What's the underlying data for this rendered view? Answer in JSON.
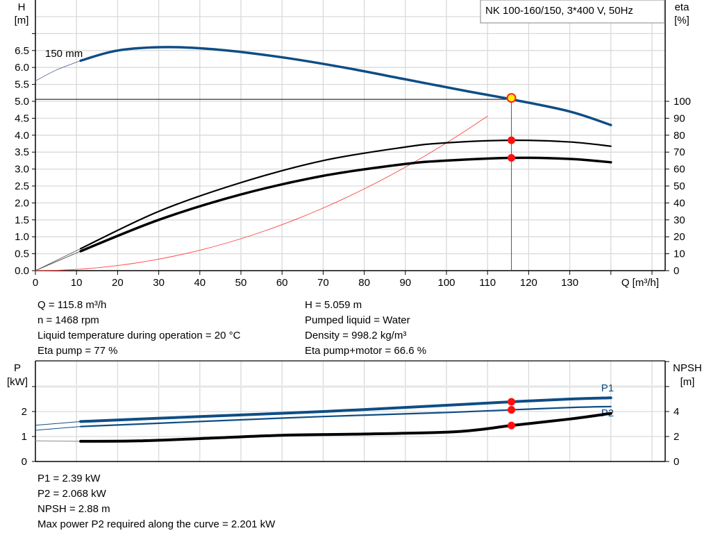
{
  "chart_data": [
    {
      "type": "line",
      "title": "NK 100-160/150, 3*400 V, 50Hz",
      "xlabel": "Q [m³/h]",
      "ylabel_left": [
        "H",
        "[m]"
      ],
      "ylabel_right": [
        "eta",
        "[%]"
      ],
      "xlim": [
        0,
        150
      ],
      "ylim_left": [
        0,
        7.5
      ],
      "ylim_right": [
        0,
        100
      ],
      "grid": true,
      "x_ticks": [
        "0",
        "10",
        "20",
        "30",
        "40",
        "50",
        "60",
        "70",
        "80",
        "90",
        "100",
        "110",
        "120",
        "130"
      ],
      "y_left_ticks": [
        "0.0",
        "0.5",
        "1.0",
        "1.5",
        "2.0",
        "2.5",
        "3.0",
        "3.5",
        "4.0",
        "4.5",
        "5.0",
        "5.5",
        "6.0",
        "6.5"
      ],
      "y_right_ticks": [
        "0",
        "10",
        "20",
        "30",
        "40",
        "50",
        "60",
        "70",
        "80",
        "90",
        "100"
      ],
      "impeller_label": "150 mm",
      "duty_point": {
        "Q": 115.8,
        "H": 5.059,
        "eta_pump": 77,
        "eta_total": 66.6
      },
      "series": [
        {
          "key": "H",
          "axis": "left",
          "color": "#0e4d85",
          "extension": [
            [
              0,
              5.6
            ],
            [
              5,
              5.92
            ],
            [
              11,
              6.2
            ]
          ],
          "points": [
            [
              11,
              6.2
            ],
            [
              20,
              6.5
            ],
            [
              32,
              6.6
            ],
            [
              45,
              6.52
            ],
            [
              60,
              6.3
            ],
            [
              75,
              6.0
            ],
            [
              90,
              5.65
            ],
            [
              105,
              5.3
            ],
            [
              115.8,
              5.059
            ],
            [
              130,
              4.7
            ],
            [
              140,
              4.3
            ]
          ]
        },
        {
          "key": "eta_pump",
          "axis": "right",
          "color": "#000000",
          "extension": [
            [
              0,
              0
            ],
            [
              11,
              13
            ]
          ],
          "points": [
            [
              11,
              13
            ],
            [
              30,
              35
            ],
            [
              50,
              52
            ],
            [
              70,
              65
            ],
            [
              90,
              73
            ],
            [
              100,
              75.5
            ],
            [
              115.8,
              77
            ],
            [
              130,
              76
            ],
            [
              140,
              73.5
            ]
          ]
        },
        {
          "key": "eta_total",
          "axis": "right",
          "color": "#000000",
          "extension": [
            [
              0,
              0
            ],
            [
              11,
              11.5
            ]
          ],
          "points": [
            [
              11,
              11.5
            ],
            [
              30,
              30
            ],
            [
              50,
              45
            ],
            [
              70,
              56
            ],
            [
              90,
              63
            ],
            [
              100,
              65
            ],
            [
              115.8,
              66.6
            ],
            [
              130,
              66
            ],
            [
              140,
              64
            ]
          ]
        },
        {
          "key": "system",
          "axis": "left",
          "color": "#ff0000",
          "note_formula": "quadratic through origin and duty point"
        }
      ]
    },
    {
      "type": "line",
      "xlim": [
        0,
        150
      ],
      "ylabel_left": [
        "P",
        "[kW]"
      ],
      "ylabel_right": [
        "NPSH",
        "[m]"
      ],
      "ylim_left": [
        0,
        4
      ],
      "ylim_right": [
        0,
        8
      ],
      "grid": true,
      "y_left_ticks": [
        "0",
        "1",
        "2"
      ],
      "y_right_ticks": [
        "0",
        "2",
        "4"
      ],
      "series": [
        {
          "name": "P1",
          "axis": "left",
          "color": "#0e4d85",
          "extension": [
            [
              0,
              1.45
            ],
            [
              11,
              1.6
            ]
          ],
          "points": [
            [
              11,
              1.6
            ],
            [
              40,
              1.8
            ],
            [
              70,
              2.0
            ],
            [
              100,
              2.25
            ],
            [
              115.8,
              2.39
            ],
            [
              130,
              2.5
            ],
            [
              140,
              2.55
            ]
          ]
        },
        {
          "name": "P2",
          "axis": "left",
          "color": "#0e4d85",
          "extension": [
            [
              0,
              1.25
            ],
            [
              11,
              1.4
            ]
          ],
          "points": [
            [
              11,
              1.4
            ],
            [
              40,
              1.6
            ],
            [
              70,
              1.8
            ],
            [
              100,
              1.96
            ],
            [
              115.8,
              2.068
            ],
            [
              130,
              2.16
            ],
            [
              140,
              2.2
            ]
          ]
        },
        {
          "key": "NPSH",
          "axis": "right",
          "color": "#000000",
          "extension": [
            [
              0,
              1.65
            ],
            [
              11,
              1.62
            ]
          ],
          "points": [
            [
              11,
              1.62
            ],
            [
              25,
              1.65
            ],
            [
              45,
              1.9
            ],
            [
              60,
              2.1
            ],
            [
              80,
              2.2
            ],
            [
              100,
              2.35
            ],
            [
              108,
              2.55
            ],
            [
              115.8,
              2.88
            ],
            [
              130,
              3.4
            ],
            [
              140,
              3.85
            ]
          ]
        }
      ],
      "duty_point": {
        "Q": 115.8,
        "P1": 2.39,
        "P2": 2.068,
        "NPSH": 2.88
      }
    }
  ],
  "info_top_left": [
    "Q = 115.8 m³/h",
    "n = 1468 rpm",
    "Liquid temperature during operation = 20 °C",
    "Eta pump = 77 %"
  ],
  "info_top_right": [
    "H = 5.059 m",
    "Pumped liquid = Water",
    "Density = 998.2 kg/m³",
    "Eta pump+motor = 66.6 %"
  ],
  "info_bottom": [
    "P1 = 2.39 kW",
    "P2 = 2.068 kW",
    "NPSH = 2.88 m",
    "Max power P2 required along the curve = 2.201 kW"
  ]
}
